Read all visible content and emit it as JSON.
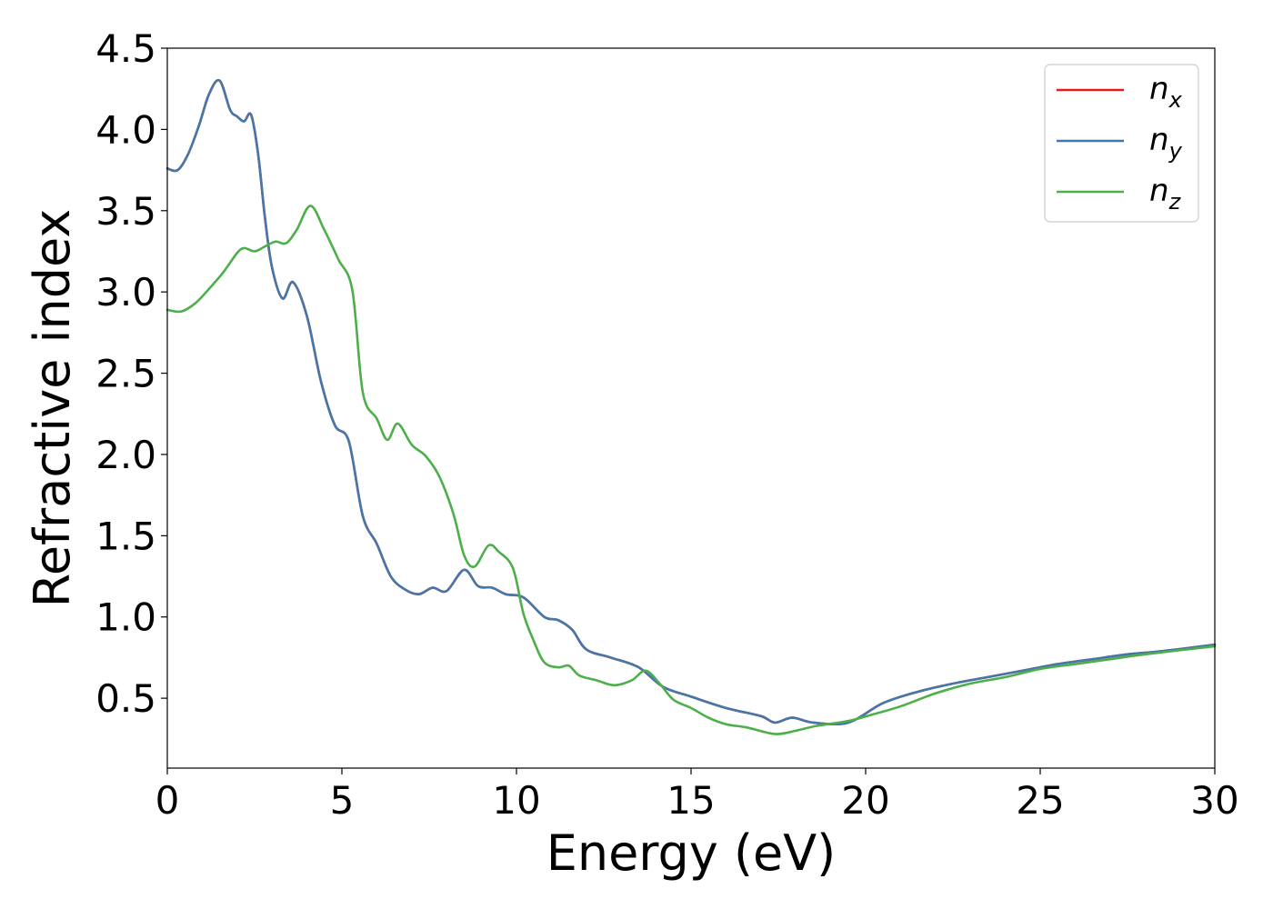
{
  "chart_data": {
    "type": "line",
    "title": "",
    "xlabel": "Energy (eV)",
    "ylabel": "Refractive index",
    "xlim": [
      0,
      30
    ],
    "ylim": [
      0.07,
      4.5
    ],
    "xticks": [
      0,
      5,
      10,
      15,
      20,
      25,
      30
    ],
    "xtick_labels": [
      "0",
      "5",
      "10",
      "15",
      "20",
      "25",
      "30"
    ],
    "yticks": [
      0.5,
      1.0,
      1.5,
      2.0,
      2.5,
      3.0,
      3.5,
      4.0,
      4.5
    ],
    "ytick_labels": [
      "0.5",
      "1.0",
      "1.5",
      "2.0",
      "2.5",
      "3.0",
      "3.5",
      "4.0",
      "4.5"
    ],
    "grid": false,
    "legend_position": "top-right",
    "series": [
      {
        "name": "n_x",
        "label_main": "n",
        "label_sub": "x",
        "color": "#e41a1c",
        "x": [
          0,
          0.3,
          0.6,
          0.9,
          1.2,
          1.5,
          1.8,
          2.0,
          2.2,
          2.4,
          2.6,
          2.8,
          3.0,
          3.3,
          3.6,
          4.0,
          4.4,
          4.8,
          5.2,
          5.6,
          6.0,
          6.4,
          6.8,
          7.2,
          7.6,
          8.0,
          8.5,
          8.9,
          9.3,
          9.7,
          10.2,
          10.8,
          11.2,
          11.6,
          12.0,
          12.7,
          13.5,
          14.2,
          15.0,
          16.0,
          17.0,
          17.4,
          17.9,
          18.5,
          19.5,
          20.5,
          21.5,
          22.5,
          23.5,
          24.5,
          25.5,
          26.5,
          27.5,
          28.5,
          30.0
        ],
        "y": [
          3.76,
          3.75,
          3.85,
          4.02,
          4.22,
          4.3,
          4.12,
          4.08,
          4.05,
          4.09,
          3.85,
          3.45,
          3.15,
          2.96,
          3.06,
          2.85,
          2.45,
          2.18,
          2.08,
          1.62,
          1.45,
          1.25,
          1.17,
          1.14,
          1.18,
          1.16,
          1.29,
          1.19,
          1.18,
          1.14,
          1.12,
          1.0,
          0.98,
          0.92,
          0.8,
          0.75,
          0.69,
          0.57,
          0.51,
          0.44,
          0.39,
          0.35,
          0.38,
          0.35,
          0.35,
          0.47,
          0.54,
          0.59,
          0.63,
          0.67,
          0.71,
          0.74,
          0.77,
          0.79,
          0.83
        ]
      },
      {
        "name": "n_y",
        "label_main": "n",
        "label_sub": "y",
        "color": "#4477aa",
        "x": [
          0,
          0.3,
          0.6,
          0.9,
          1.2,
          1.5,
          1.8,
          2.0,
          2.2,
          2.4,
          2.6,
          2.8,
          3.0,
          3.3,
          3.6,
          4.0,
          4.4,
          4.8,
          5.2,
          5.6,
          6.0,
          6.4,
          6.8,
          7.2,
          7.6,
          8.0,
          8.5,
          8.9,
          9.3,
          9.7,
          10.2,
          10.8,
          11.2,
          11.6,
          12.0,
          12.7,
          13.5,
          14.2,
          15.0,
          16.0,
          17.0,
          17.4,
          17.9,
          18.5,
          19.5,
          20.5,
          21.5,
          22.5,
          23.5,
          24.5,
          25.5,
          26.5,
          27.5,
          28.5,
          30.0
        ],
        "y": [
          3.76,
          3.75,
          3.85,
          4.02,
          4.22,
          4.3,
          4.12,
          4.08,
          4.05,
          4.09,
          3.85,
          3.45,
          3.15,
          2.96,
          3.06,
          2.85,
          2.45,
          2.18,
          2.08,
          1.62,
          1.45,
          1.25,
          1.17,
          1.14,
          1.18,
          1.16,
          1.29,
          1.19,
          1.18,
          1.14,
          1.12,
          1.0,
          0.98,
          0.92,
          0.8,
          0.75,
          0.69,
          0.57,
          0.51,
          0.44,
          0.39,
          0.35,
          0.38,
          0.35,
          0.35,
          0.47,
          0.54,
          0.59,
          0.63,
          0.67,
          0.71,
          0.74,
          0.77,
          0.79,
          0.83
        ]
      },
      {
        "name": "n_z",
        "label_main": "n",
        "label_sub": "z",
        "color": "#4daf4a",
        "x": [
          0,
          0.4,
          0.8,
          1.2,
          1.6,
          2.0,
          2.2,
          2.5,
          2.8,
          3.1,
          3.4,
          3.7,
          4.1,
          4.5,
          4.9,
          5.3,
          5.6,
          6.0,
          6.3,
          6.6,
          7.0,
          7.4,
          7.8,
          8.2,
          8.5,
          8.8,
          9.2,
          9.5,
          9.9,
          10.2,
          10.5,
          10.8,
          11.2,
          11.5,
          11.8,
          12.3,
          12.8,
          13.3,
          13.7,
          14.1,
          14.5,
          15.0,
          15.5,
          16.0,
          16.6,
          17.4,
          18.0,
          18.6,
          19.5,
          20.2,
          21.0,
          22.0,
          23.0,
          24.0,
          25.0,
          26.0,
          27.0,
          28.0,
          30.0
        ],
        "y": [
          2.89,
          2.88,
          2.93,
          3.02,
          3.12,
          3.24,
          3.27,
          3.25,
          3.28,
          3.31,
          3.3,
          3.38,
          3.53,
          3.38,
          3.2,
          3.01,
          2.38,
          2.22,
          2.09,
          2.19,
          2.06,
          1.99,
          1.86,
          1.63,
          1.38,
          1.31,
          1.44,
          1.4,
          1.3,
          1.02,
          0.85,
          0.72,
          0.69,
          0.7,
          0.64,
          0.61,
          0.58,
          0.61,
          0.67,
          0.59,
          0.49,
          0.44,
          0.38,
          0.34,
          0.32,
          0.28,
          0.3,
          0.33,
          0.36,
          0.4,
          0.45,
          0.53,
          0.59,
          0.63,
          0.68,
          0.71,
          0.74,
          0.77,
          0.82
        ]
      }
    ]
  }
}
